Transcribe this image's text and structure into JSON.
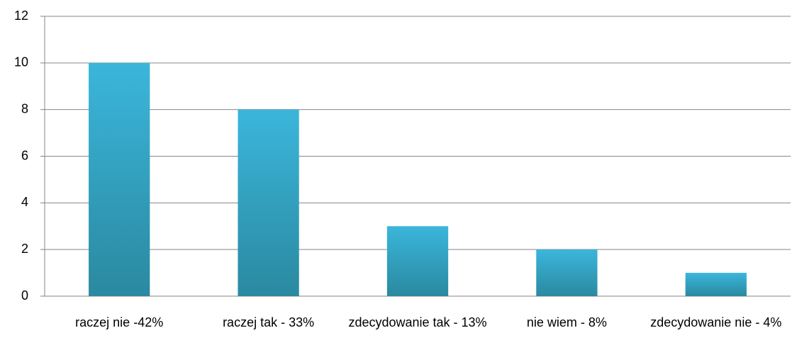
{
  "chart_data": {
    "type": "bar",
    "categories": [
      "raczej nie -42%",
      "raczej tak - 33%",
      "zdecydowanie tak - 13%",
      "nie wiem - 8%",
      "zdecydowanie nie - 4%"
    ],
    "values": [
      10,
      8,
      3,
      2,
      1
    ],
    "color_gradient": [
      "#3bb6db",
      "#2a89a0"
    ],
    "ylim": [
      0,
      12
    ],
    "yticks": [
      0,
      2,
      4,
      6,
      8,
      10,
      12
    ],
    "grid": true
  }
}
